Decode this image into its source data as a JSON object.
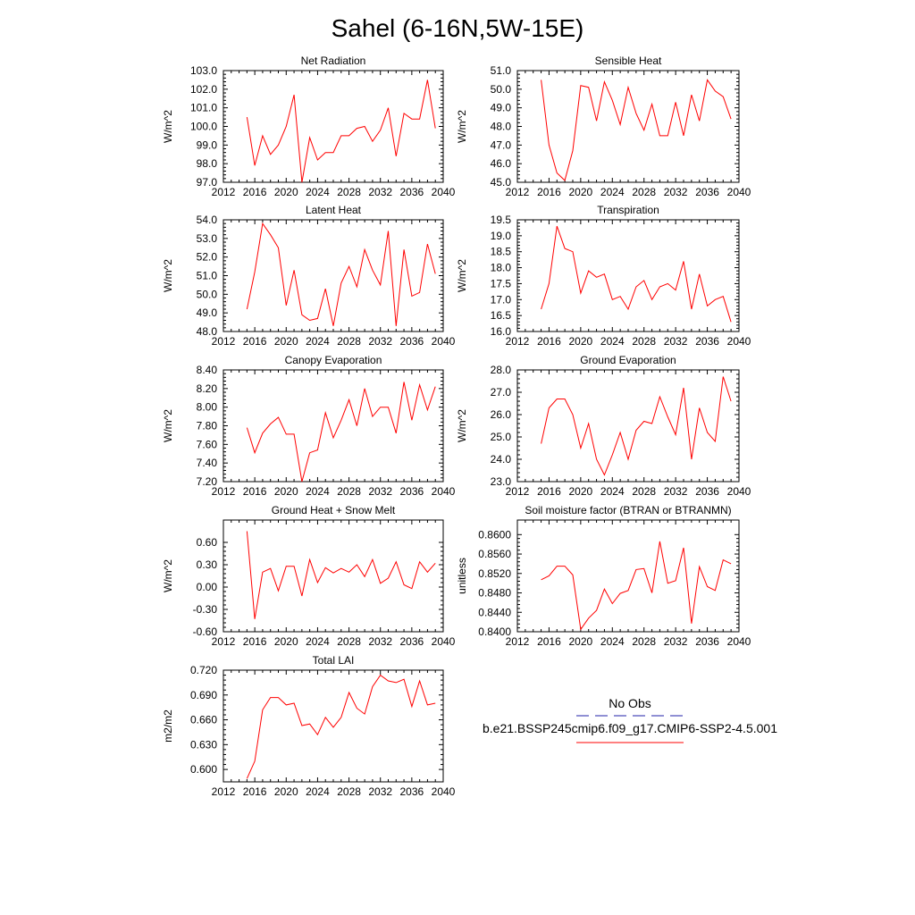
{
  "page": {
    "title": "Sahel (6-16N,5W-15E)"
  },
  "legend": {
    "obs_label": "No Obs",
    "model_label": "b.e21.BSSP245cmip6.f09_g17.CMIP6-SSP2-4.5.001",
    "obs_color": "#2222aa",
    "model_color": "#ff0000"
  },
  "chart_data": [
    {
      "type": "line",
      "title": "Net Radiation",
      "ylabel": "W/m^2",
      "xlim": [
        2012,
        2040
      ],
      "ylim": [
        97.0,
        103.0
      ],
      "xticks": [
        "2012",
        "2016",
        "2020",
        "2024",
        "2028",
        "2032",
        "2036",
        "2040"
      ],
      "yticks": [
        "97.0",
        "98.0",
        "99.0",
        "100.0",
        "101.0",
        "102.0",
        "103.0"
      ],
      "series": [
        {
          "color": "#ff0000",
          "x": [
            2015,
            2016,
            2017,
            2018,
            2019,
            2020,
            2021,
            2022,
            2023,
            2024,
            2025,
            2026,
            2027,
            2028,
            2029,
            2030,
            2031,
            2032,
            2033,
            2034,
            2035,
            2036,
            2037,
            2038,
            2039
          ],
          "values": [
            100.5,
            97.9,
            99.5,
            98.5,
            99.0,
            100.0,
            101.7,
            97.0,
            99.4,
            98.2,
            98.6,
            98.6,
            99.5,
            99.5,
            99.9,
            100.0,
            99.2,
            99.8,
            101.0,
            98.4,
            100.7,
            100.4,
            100.4,
            102.5,
            99.9
          ]
        }
      ]
    },
    {
      "type": "line",
      "title": "Sensible Heat",
      "ylabel": "W/m^2",
      "xlim": [
        2012,
        2040
      ],
      "ylim": [
        45.0,
        51.0
      ],
      "xticks": [
        "2012",
        "2016",
        "2020",
        "2024",
        "2028",
        "2032",
        "2036",
        "2040"
      ],
      "yticks": [
        "45.0",
        "46.0",
        "47.0",
        "48.0",
        "49.0",
        "50.0",
        "51.0"
      ],
      "series": [
        {
          "color": "#ff0000",
          "x": [
            2015,
            2016,
            2017,
            2018,
            2019,
            2020,
            2021,
            2022,
            2023,
            2024,
            2025,
            2026,
            2027,
            2028,
            2029,
            2030,
            2031,
            2032,
            2033,
            2034,
            2035,
            2036,
            2037,
            2038,
            2039
          ],
          "values": [
            50.5,
            47.0,
            45.5,
            45.1,
            46.7,
            50.2,
            50.1,
            48.3,
            50.4,
            49.4,
            48.1,
            50.1,
            48.7,
            47.8,
            49.2,
            47.5,
            47.5,
            49.3,
            47.5,
            49.7,
            48.3,
            50.5,
            49.9,
            49.6,
            48.4
          ]
        }
      ]
    },
    {
      "type": "line",
      "title": "Latent Heat",
      "ylabel": "W/m^2",
      "xlim": [
        2012,
        2040
      ],
      "ylim": [
        48.0,
        54.0
      ],
      "xticks": [
        "2012",
        "2016",
        "2020",
        "2024",
        "2028",
        "2032",
        "2036",
        "2040"
      ],
      "yticks": [
        "48.0",
        "49.0",
        "50.0",
        "51.0",
        "52.0",
        "53.0",
        "54.0"
      ],
      "series": [
        {
          "color": "#ff0000",
          "x": [
            2015,
            2016,
            2017,
            2018,
            2019,
            2020,
            2021,
            2022,
            2023,
            2024,
            2025,
            2026,
            2027,
            2028,
            2029,
            2030,
            2031,
            2032,
            2033,
            2034,
            2035,
            2036,
            2037,
            2038,
            2039
          ],
          "values": [
            49.2,
            51.2,
            53.8,
            53.2,
            52.5,
            49.4,
            51.3,
            48.9,
            48.6,
            48.7,
            50.3,
            48.3,
            50.6,
            51.5,
            50.4,
            52.4,
            51.3,
            50.5,
            53.4,
            48.3,
            52.4,
            49.9,
            50.1,
            52.7,
            51.1
          ]
        }
      ]
    },
    {
      "type": "line",
      "title": "Transpiration",
      "ylabel": "W/m^2",
      "xlim": [
        2012,
        2040
      ],
      "ylim": [
        16.0,
        19.5
      ],
      "xticks": [
        "2012",
        "2016",
        "2020",
        "2024",
        "2028",
        "2032",
        "2036",
        "2040"
      ],
      "yticks": [
        "16.0",
        "16.5",
        "17.0",
        "17.5",
        "18.0",
        "18.5",
        "19.0",
        "19.5"
      ],
      "series": [
        {
          "color": "#ff0000",
          "x": [
            2015,
            2016,
            2017,
            2018,
            2019,
            2020,
            2021,
            2022,
            2023,
            2024,
            2025,
            2026,
            2027,
            2028,
            2029,
            2030,
            2031,
            2032,
            2033,
            2034,
            2035,
            2036,
            2037,
            2038,
            2039
          ],
          "values": [
            16.7,
            17.5,
            19.3,
            18.6,
            18.5,
            17.2,
            17.9,
            17.7,
            17.8,
            17.0,
            17.1,
            16.7,
            17.4,
            17.6,
            17.0,
            17.4,
            17.5,
            17.3,
            18.2,
            16.7,
            17.8,
            16.8,
            17.0,
            17.1,
            16.3
          ]
        }
      ]
    },
    {
      "type": "line",
      "title": "Canopy Evaporation",
      "ylabel": "W/m^2",
      "xlim": [
        2012,
        2040
      ],
      "ylim": [
        7.2,
        8.4
      ],
      "xticks": [
        "2012",
        "2016",
        "2020",
        "2024",
        "2028",
        "2032",
        "2036",
        "2040"
      ],
      "yticks": [
        "7.20",
        "7.40",
        "7.60",
        "7.80",
        "8.00",
        "8.20",
        "8.40"
      ],
      "series": [
        {
          "color": "#ff0000",
          "x": [
            2015,
            2016,
            2017,
            2018,
            2019,
            2020,
            2021,
            2022,
            2023,
            2024,
            2025,
            2026,
            2027,
            2028,
            2029,
            2030,
            2031,
            2032,
            2033,
            2034,
            2035,
            2036,
            2037,
            2038,
            2039
          ],
          "values": [
            7.78,
            7.51,
            7.72,
            7.82,
            7.89,
            7.71,
            7.71,
            7.2,
            7.51,
            7.54,
            7.94,
            7.67,
            7.86,
            8.08,
            7.8,
            8.2,
            7.9,
            8.0,
            8.0,
            7.72,
            8.27,
            7.86,
            8.24,
            7.97,
            8.22
          ]
        }
      ]
    },
    {
      "type": "line",
      "title": "Ground Evaporation",
      "ylabel": "W/m^2",
      "xlim": [
        2012,
        2040
      ],
      "ylim": [
        23.0,
        28.0
      ],
      "xticks": [
        "2012",
        "2016",
        "2020",
        "2024",
        "2028",
        "2032",
        "2036",
        "2040"
      ],
      "yticks": [
        "23.0",
        "24.0",
        "25.0",
        "26.0",
        "27.0",
        "28.0"
      ],
      "series": [
        {
          "color": "#ff0000",
          "x": [
            2015,
            2016,
            2017,
            2018,
            2019,
            2020,
            2021,
            2022,
            2023,
            2024,
            2025,
            2026,
            2027,
            2028,
            2029,
            2030,
            2031,
            2032,
            2033,
            2034,
            2035,
            2036,
            2037,
            2038,
            2039
          ],
          "values": [
            24.7,
            26.3,
            26.7,
            26.7,
            26.0,
            24.5,
            25.6,
            24.0,
            23.3,
            24.2,
            25.2,
            24.0,
            25.3,
            25.7,
            25.6,
            26.8,
            25.9,
            25.1,
            27.2,
            24.0,
            26.3,
            25.2,
            24.8,
            27.7,
            26.6
          ]
        }
      ]
    },
    {
      "type": "line",
      "title": "Ground Heat + Snow Melt",
      "ylabel": "W/m^2",
      "xlim": [
        2012,
        2040
      ],
      "ylim": [
        -0.6,
        0.9
      ],
      "xticks": [
        "2012",
        "2016",
        "2020",
        "2024",
        "2028",
        "2032",
        "2036",
        "2040"
      ],
      "yticks": [
        "-0.60",
        "-0.30",
        "0.00",
        "0.30",
        "0.60"
      ],
      "series": [
        {
          "color": "#ff0000",
          "x": [
            2015,
            2016,
            2017,
            2018,
            2019,
            2020,
            2021,
            2022,
            2023,
            2024,
            2025,
            2026,
            2027,
            2028,
            2029,
            2030,
            2031,
            2032,
            2033,
            2034,
            2035,
            2036,
            2037,
            2038,
            2039
          ],
          "values": [
            0.75,
            -0.43,
            0.2,
            0.25,
            -0.05,
            0.28,
            0.28,
            -0.12,
            0.37,
            0.06,
            0.26,
            0.19,
            0.25,
            0.2,
            0.3,
            0.14,
            0.37,
            0.05,
            0.12,
            0.34,
            0.03,
            -0.02,
            0.34,
            0.2,
            0.32
          ]
        }
      ]
    },
    {
      "type": "line",
      "title": "Soil moisture factor (BTRAN or BTRANMN)",
      "ylabel": "unitless",
      "xlim": [
        2012,
        2040
      ],
      "ylim": [
        0.84,
        0.863
      ],
      "xticks": [
        "2012",
        "2016",
        "2020",
        "2024",
        "2028",
        "2032",
        "2036",
        "2040"
      ],
      "yticks": [
        "0.8400",
        "0.8440",
        "0.8480",
        "0.8520",
        "0.8560",
        "0.8600"
      ],
      "series": [
        {
          "color": "#ff0000",
          "x": [
            2015,
            2016,
            2017,
            2018,
            2019,
            2020,
            2021,
            2022,
            2023,
            2024,
            2025,
            2026,
            2027,
            2028,
            2029,
            2030,
            2031,
            2032,
            2033,
            2034,
            2035,
            2036,
            2037,
            2038,
            2039
          ],
          "values": [
            0.8507,
            0.8515,
            0.8535,
            0.8535,
            0.8517,
            0.8405,
            0.8428,
            0.8444,
            0.8488,
            0.8458,
            0.8479,
            0.8485,
            0.8528,
            0.853,
            0.848,
            0.8586,
            0.85,
            0.8505,
            0.8573,
            0.8417,
            0.8534,
            0.8493,
            0.8485,
            0.8548,
            0.854
          ]
        }
      ]
    },
    {
      "type": "line",
      "title": "Total LAI",
      "ylabel": "m2/m2",
      "xlim": [
        2012,
        2040
      ],
      "ylim": [
        0.585,
        0.72
      ],
      "xticks": [
        "2012",
        "2016",
        "2020",
        "2024",
        "2028",
        "2032",
        "2036",
        "2040"
      ],
      "yticks": [
        "0.600",
        "0.630",
        "0.660",
        "0.690",
        "0.720"
      ],
      "series": [
        {
          "color": "#ff0000",
          "x": [
            2015,
            2016,
            2017,
            2018,
            2019,
            2020,
            2021,
            2022,
            2023,
            2024,
            2025,
            2026,
            2027,
            2028,
            2029,
            2030,
            2031,
            2032,
            2033,
            2034,
            2035,
            2036,
            2037,
            2038,
            2039
          ],
          "values": [
            0.589,
            0.61,
            0.672,
            0.687,
            0.687,
            0.678,
            0.68,
            0.653,
            0.655,
            0.642,
            0.663,
            0.651,
            0.663,
            0.693,
            0.674,
            0.667,
            0.7,
            0.714,
            0.707,
            0.705,
            0.709,
            0.676,
            0.707,
            0.678,
            0.68
          ]
        }
      ]
    }
  ]
}
